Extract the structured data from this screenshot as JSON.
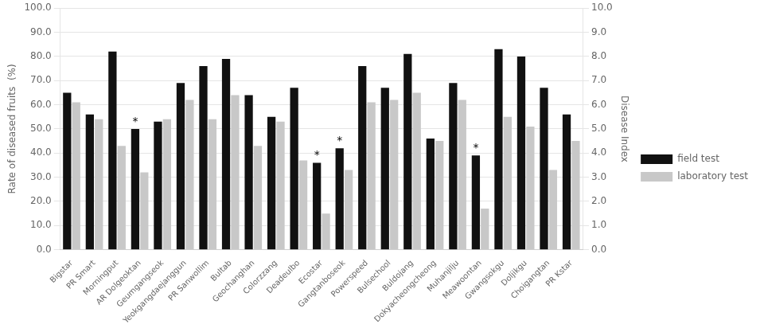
{
  "chart_data": {
    "type": "bar",
    "categories": [
      "Bigstar",
      "PR Smart",
      "Morningput",
      "AR Dolgeoktan",
      "Geumgangseok",
      "Yeokgangdaejanggun",
      "PR Sanwollim",
      "Bultab",
      "Geochanghan",
      "Colorzzang",
      "Deadeulbo",
      "Ecostar",
      "Gangtanboseok",
      "Powerspeed",
      "Bulsechool",
      "Buldojang",
      "Dokyacheongcheong",
      "Muhanjilju",
      "Meawoontan",
      "Gwangsokgu",
      "Doljikgu",
      "Choigangtan",
      "PR Kstar"
    ],
    "series": [
      {
        "name": "field test",
        "color": "#111111",
        "values": [
          65,
          56,
          82,
          50,
          53,
          69,
          76,
          79,
          64,
          55,
          67,
          36,
          42,
          76,
          67,
          81,
          46,
          69,
          39,
          83,
          80,
          67,
          56
        ]
      },
      {
        "name": "laboratory test",
        "color": "#c8c8c8",
        "values": [
          61,
          54,
          43,
          32,
          54,
          62,
          54,
          64,
          43,
          53,
          37,
          15,
          33,
          61,
          62,
          65,
          45,
          62,
          17,
          55,
          51,
          33,
          45
        ]
      }
    ],
    "ylabel": "Rate of diseased fruits  (%)",
    "y2label": "Disease Index",
    "ylim": [
      0,
      100
    ],
    "yticks": [
      {
        "value": 0,
        "label": "0.0"
      },
      {
        "value": 10,
        "label": "10.0"
      },
      {
        "value": 20,
        "label": "20.0"
      },
      {
        "value": 30,
        "label": "30.0"
      },
      {
        "value": 40,
        "label": "40.0"
      },
      {
        "value": 50,
        "label": "50.0"
      },
      {
        "value": 60,
        "label": "60.0"
      },
      {
        "value": 70,
        "label": "70.0"
      },
      {
        "value": 80,
        "label": "80.0"
      },
      {
        "value": 90,
        "label": "90.0"
      },
      {
        "value": 100,
        "label": "100.0"
      }
    ],
    "y2lim": [
      0,
      10
    ],
    "y2ticks": [
      {
        "value": 0,
        "label": "0.0"
      },
      {
        "value": 1,
        "label": "1.0"
      },
      {
        "value": 2,
        "label": "2.0"
      },
      {
        "value": 3,
        "label": "3.0"
      },
      {
        "value": 4,
        "label": "4.0"
      },
      {
        "value": 5,
        "label": "5.0"
      },
      {
        "value": 6,
        "label": "6.0"
      },
      {
        "value": 7,
        "label": "7.0"
      },
      {
        "value": 8,
        "label": "8.0"
      },
      {
        "value": 9,
        "label": "9.0"
      },
      {
        "value": 10,
        "label": "10.0"
      }
    ],
    "grid": true,
    "legend": "right",
    "annotations": [
      {
        "text": "*",
        "x": "AR Dolgeoktan",
        "series": "field test"
      },
      {
        "text": "*",
        "x": "Ecostar",
        "series": "field test"
      },
      {
        "text": "*",
        "x": "Gangtanboseok",
        "series": "field test"
      },
      {
        "text": "*",
        "x": "Meawoontan",
        "series": "field test"
      }
    ]
  }
}
